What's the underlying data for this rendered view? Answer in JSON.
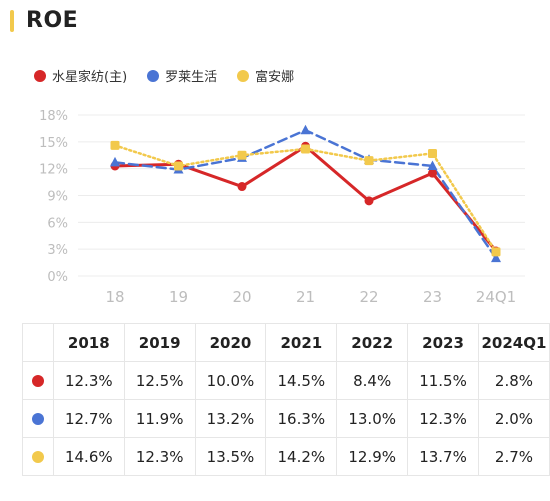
{
  "title": "ROE",
  "accent_color": "#f2c94c",
  "chart_data": {
    "type": "line",
    "categories": [
      "18",
      "19",
      "20",
      "21",
      "22",
      "23",
      "24Q1"
    ],
    "yticks": [
      "0%",
      "3%",
      "6%",
      "9%",
      "12%",
      "15%",
      "18%"
    ],
    "ylim": [
      0,
      18
    ],
    "grid": true,
    "legend_position": "top-left",
    "series": [
      {
        "name": "水星家纺(主)",
        "color": "#d62728",
        "style": "solid",
        "marker": "circle",
        "values": [
          12.3,
          12.5,
          10.0,
          14.5,
          8.4,
          11.5,
          2.8
        ]
      },
      {
        "name": "罗莱生活",
        "color": "#4a74d4",
        "style": "dashed",
        "marker": "triangle",
        "values": [
          12.7,
          11.9,
          13.2,
          16.3,
          13.0,
          12.3,
          2.0
        ]
      },
      {
        "name": "富安娜",
        "color": "#f2c94c",
        "style": "dotted",
        "marker": "square",
        "values": [
          14.6,
          12.3,
          13.5,
          14.2,
          12.9,
          13.7,
          2.7
        ]
      }
    ]
  },
  "table": {
    "headers": [
      "2018",
      "2019",
      "2020",
      "2021",
      "2022",
      "2023",
      "2024Q1"
    ],
    "rows": [
      {
        "color": "#d62728",
        "values": [
          "12.3%",
          "12.5%",
          "10.0%",
          "14.5%",
          "8.4%",
          "11.5%",
          "2.8%"
        ]
      },
      {
        "color": "#4a74d4",
        "values": [
          "12.7%",
          "11.9%",
          "13.2%",
          "16.3%",
          "13.0%",
          "12.3%",
          "2.0%"
        ]
      },
      {
        "color": "#f2c94c",
        "values": [
          "14.6%",
          "12.3%",
          "13.5%",
          "14.2%",
          "12.9%",
          "13.7%",
          "2.7%"
        ]
      }
    ]
  }
}
